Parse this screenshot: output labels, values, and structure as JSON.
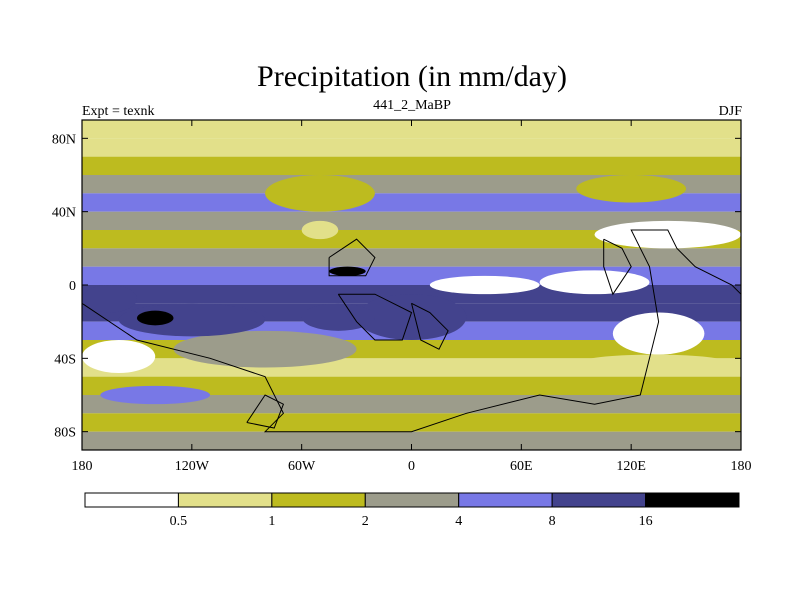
{
  "chart_data": {
    "type": "heatmap",
    "title": "Precipitation (in mm/day)",
    "left_label": "Expt = texnk",
    "center_label": "441_2_MaBP",
    "right_label": "DJF",
    "x_ticks": [
      {
        "value": -180,
        "label": "180"
      },
      {
        "value": -120,
        "label": "120W"
      },
      {
        "value": -60,
        "label": "60W"
      },
      {
        "value": 0,
        "label": "0"
      },
      {
        "value": 60,
        "label": "60E"
      },
      {
        "value": 120,
        "label": "120E"
      },
      {
        "value": 180,
        "label": "180"
      }
    ],
    "y_ticks": [
      {
        "value": 80,
        "label": "80N"
      },
      {
        "value": 40,
        "label": "40N"
      },
      {
        "value": 0,
        "label": "0"
      },
      {
        "value": -40,
        "label": "40S"
      },
      {
        "value": -80,
        "label": "80S"
      }
    ],
    "xlim": [
      -180,
      180
    ],
    "ylim": [
      -90,
      90
    ],
    "colorbar": {
      "levels": [
        "0.5",
        "1",
        "2",
        "4",
        "8",
        "16"
      ],
      "colors": [
        "#ffffff",
        "#e2e08a",
        "#bdbb1f",
        "#9c9c8b",
        "#7878e6",
        "#43438d",
        "#000000"
      ]
    },
    "bands": [
      {
        "lat": [
          80,
          90
        ],
        "class": 1
      },
      {
        "lat": [
          70,
          80
        ],
        "class": 1
      },
      {
        "lat": [
          60,
          70
        ],
        "class": 2
      },
      {
        "lat": [
          50,
          60
        ],
        "class": 3
      },
      {
        "lat": [
          40,
          50
        ],
        "class": 4
      },
      {
        "lat": [
          30,
          40
        ],
        "class": 3
      },
      {
        "lat": [
          20,
          30
        ],
        "class": 2
      },
      {
        "lat": [
          10,
          20
        ],
        "class": 3
      },
      {
        "lat": [
          0,
          10
        ],
        "class": 4
      },
      {
        "lat": [
          -10,
          0
        ],
        "class": 5
      },
      {
        "lat": [
          -20,
          -10
        ],
        "class": 5
      },
      {
        "lat": [
          -30,
          -20
        ],
        "class": 4
      },
      {
        "lat": [
          -40,
          -30
        ],
        "class": 2
      },
      {
        "lat": [
          -50,
          -40
        ],
        "class": 1
      },
      {
        "lat": [
          -60,
          -50
        ],
        "class": 2
      },
      {
        "lat": [
          -70,
          -60
        ],
        "class": 3
      },
      {
        "lat": [
          -80,
          -70
        ],
        "class": 2
      },
      {
        "lat": [
          -90,
          -80
        ],
        "class": 3
      }
    ],
    "patches": [
      {
        "lon": [
          -180,
          -140
        ],
        "lat": [
          -48,
          -30
        ],
        "class": 0
      },
      {
        "lon": [
          -130,
          -30
        ],
        "lat": [
          -45,
          -25
        ],
        "class": 3
      },
      {
        "lon": [
          -160,
          -80
        ],
        "lat": [
          -28,
          -10
        ],
        "class": 5
      },
      {
        "lon": [
          -150,
          -130
        ],
        "lat": [
          -22,
          -14
        ],
        "class": 6
      },
      {
        "lon": [
          -45,
          -25
        ],
        "lat": [
          5,
          10
        ],
        "class": 6
      },
      {
        "lon": [
          -60,
          -40
        ],
        "lat": [
          25,
          35
        ],
        "class": 1
      },
      {
        "lon": [
          10,
          70
        ],
        "lat": [
          -5,
          5
        ],
        "class": 0
      },
      {
        "lon": [
          70,
          130
        ],
        "lat": [
          -5,
          8
        ],
        "class": 0
      },
      {
        "lon": [
          100,
          180
        ],
        "lat": [
          20,
          35
        ],
        "class": 0
      },
      {
        "lon": [
          110,
          160
        ],
        "lat": [
          -38,
          -15
        ],
        "class": 0
      },
      {
        "lon": [
          95,
          170
        ],
        "lat": [
          -45,
          -38
        ],
        "class": 1
      },
      {
        "lon": [
          -30,
          30
        ],
        "lat": [
          -30,
          -5
        ],
        "class": 5
      },
      {
        "lon": [
          -60,
          -20
        ],
        "lat": [
          -25,
          -10
        ],
        "class": 5
      },
      {
        "lon": [
          -180,
          -150
        ],
        "lat": [
          -15,
          0
        ],
        "class": 5
      },
      {
        "lon": [
          -170,
          -110
        ],
        "lat": [
          -65,
          -55
        ],
        "class": 4
      },
      {
        "lon": [
          -80,
          -20
        ],
        "lat": [
          40,
          60
        ],
        "class": 2
      },
      {
        "lon": [
          90,
          150
        ],
        "lat": [
          45,
          60
        ],
        "class": 2
      }
    ],
    "coastlines": [
      [
        [
          -180,
          -10
        ],
        [
          -150,
          -30
        ],
        [
          -110,
          -40
        ],
        [
          -80,
          -50
        ],
        [
          -70,
          -70
        ],
        [
          -80,
          -80
        ],
        [
          0,
          -80
        ],
        [
          30,
          -70
        ],
        [
          70,
          -60
        ],
        [
          100,
          -65
        ],
        [
          125,
          -60
        ],
        [
          130,
          -40
        ],
        [
          135,
          -20
        ],
        [
          130,
          10
        ],
        [
          120,
          30
        ],
        [
          140,
          30
        ],
        [
          145,
          20
        ],
        [
          155,
          10
        ],
        [
          175,
          0
        ],
        [
          180,
          -5
        ]
      ],
      [
        [
          -45,
          15
        ],
        [
          -30,
          25
        ],
        [
          -20,
          15
        ],
        [
          -25,
          5
        ],
        [
          -45,
          5
        ],
        [
          -45,
          15
        ]
      ],
      [
        [
          -40,
          -5
        ],
        [
          -30,
          -20
        ],
        [
          -20,
          -30
        ],
        [
          -5,
          -30
        ],
        [
          0,
          -15
        ],
        [
          -20,
          -5
        ],
        [
          -40,
          -5
        ]
      ],
      [
        [
          0,
          -10
        ],
        [
          10,
          -15
        ],
        [
          20,
          -25
        ],
        [
          15,
          -35
        ],
        [
          5,
          -30
        ],
        [
          0,
          -10
        ]
      ],
      [
        [
          -90,
          -75
        ],
        [
          -80,
          -60
        ],
        [
          -70,
          -65
        ],
        [
          -75,
          -78
        ],
        [
          -90,
          -75
        ]
      ],
      [
        [
          105,
          25
        ],
        [
          115,
          20
        ],
        [
          120,
          10
        ],
        [
          110,
          -5
        ],
        [
          105,
          10
        ],
        [
          105,
          25
        ]
      ]
    ]
  }
}
